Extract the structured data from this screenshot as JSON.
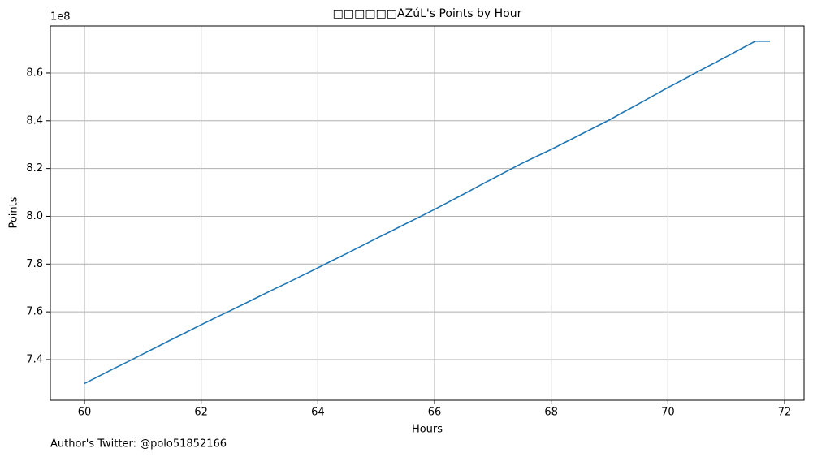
{
  "chart_data": {
    "type": "line",
    "title": "□□□□□□AZúL's Points by Hour",
    "x_label": "Hours",
    "y_label": "Points",
    "y_offset_label": "1e8",
    "footnote": "Author's Twitter: @polo51852166",
    "x": [
      60,
      60.25,
      60.5,
      60.75,
      61,
      61.25,
      61.5,
      61.75,
      62,
      62.25,
      62.5,
      62.75,
      63,
      63.25,
      63.5,
      63.75,
      64,
      64.25,
      64.5,
      64.75,
      65,
      65.25,
      65.5,
      65.75,
      66,
      66.25,
      66.5,
      66.75,
      67,
      67.25,
      67.5,
      67.75,
      68,
      68.25,
      68.5,
      68.75,
      69,
      69.25,
      69.5,
      69.75,
      70,
      70.25,
      70.5,
      70.75,
      71,
      71.25,
      71.5,
      71.75
    ],
    "series": [
      {
        "color": "#1f77b4",
        "values": [
          7.3,
          7.331,
          7.362,
          7.392,
          7.423,
          7.454,
          7.485,
          7.515,
          7.546,
          7.576,
          7.605,
          7.635,
          7.665,
          7.695,
          7.724,
          7.754,
          7.784,
          7.815,
          7.845,
          7.876,
          7.907,
          7.937,
          7.968,
          7.998,
          8.029,
          8.061,
          8.093,
          8.126,
          8.158,
          8.19,
          8.222,
          8.251,
          8.28,
          8.311,
          8.342,
          8.373,
          8.404,
          8.438,
          8.471,
          8.505,
          8.539,
          8.571,
          8.604,
          8.636,
          8.668,
          8.701,
          8.733,
          8.733
        ]
      }
    ],
    "xlim": [
      59.415,
      72.334
    ],
    "ylim": [
      7.23,
      8.797
    ],
    "xticks": [
      60,
      62,
      64,
      66,
      68,
      70,
      72
    ],
    "yticks": [
      {
        "value": 7.4,
        "label": "7.4"
      },
      {
        "value": 7.6,
        "label": "7.6"
      },
      {
        "value": 7.8,
        "label": "7.8"
      },
      {
        "value": 8.0,
        "label": "8.0"
      },
      {
        "value": 8.2,
        "label": "8.2"
      },
      {
        "value": 8.4,
        "label": "8.4"
      },
      {
        "value": 8.6,
        "label": "8.6"
      }
    ],
    "grid": true
  }
}
